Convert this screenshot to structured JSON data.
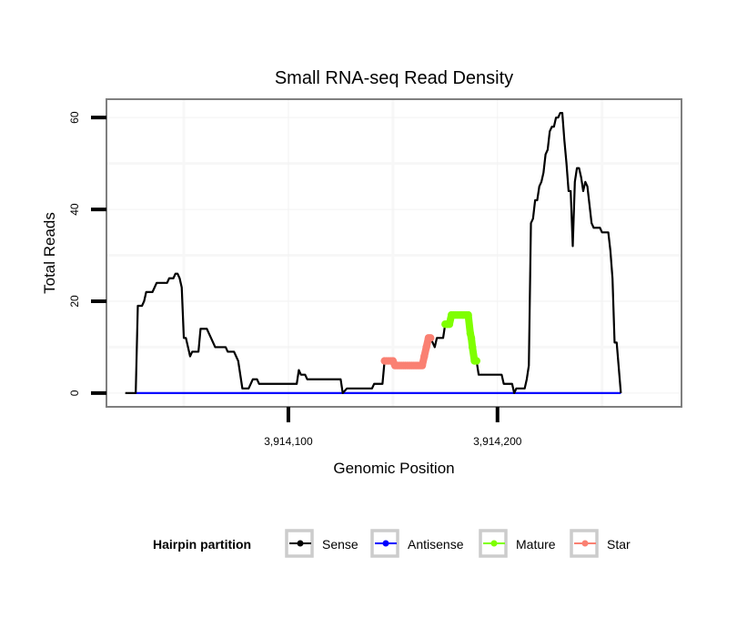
{
  "chart_data": {
    "type": "line",
    "title": "Small RNA-seq Read Density",
    "xlabel": "Genomic Position",
    "ylabel": "Total Reads",
    "xlim": [
      3914013,
      3914288
    ],
    "ylim": [
      -3,
      64
    ],
    "x_ticks": [
      {
        "value": 3914100,
        "label": "3,914,100"
      },
      {
        "value": 3914200,
        "label": "3,914,200"
      }
    ],
    "y_ticks": [
      {
        "value": 0,
        "label": "0"
      },
      {
        "value": 20,
        "label": "20"
      },
      {
        "value": 40,
        "label": "40"
      },
      {
        "value": 60,
        "label": "60"
      }
    ],
    "y_minor_gridlines": [
      10,
      30,
      50
    ],
    "x_minor_gridlines": [
      3914050,
      3914150,
      3914250
    ],
    "grid": true,
    "legend": {
      "title": "Hairpin partition",
      "placement": "bottom",
      "entries": [
        {
          "name": "Sense",
          "color": "#000000"
        },
        {
          "name": "Antisense",
          "color": "#0000ff"
        },
        {
          "name": "Mature",
          "color": "#7fff00"
        },
        {
          "name": "Star",
          "color": "#fa8072"
        }
      ]
    },
    "series": [
      {
        "name": "Sense",
        "color": "#000000",
        "markers": false,
        "points": [
          [
            3914022,
            0
          ],
          [
            3914027,
            0
          ],
          [
            3914028,
            19
          ],
          [
            3914030,
            19
          ],
          [
            3914031,
            20
          ],
          [
            3914032,
            22
          ],
          [
            3914035,
            22
          ],
          [
            3914037,
            24
          ],
          [
            3914042,
            24
          ],
          [
            3914043,
            25
          ],
          [
            3914045,
            25
          ],
          [
            3914046,
            26
          ],
          [
            3914047,
            26
          ],
          [
            3914048,
            25
          ],
          [
            3914049,
            23
          ],
          [
            3914050,
            12
          ],
          [
            3914051,
            12
          ],
          [
            3914052,
            10
          ],
          [
            3914053,
            8
          ],
          [
            3914054,
            9
          ],
          [
            3914057,
            9
          ],
          [
            3914058,
            14
          ],
          [
            3914061,
            14
          ],
          [
            3914062,
            13
          ],
          [
            3914063,
            12
          ],
          [
            3914065,
            10
          ],
          [
            3914070,
            10
          ],
          [
            3914071,
            9
          ],
          [
            3914074,
            9
          ],
          [
            3914075,
            8
          ],
          [
            3914076,
            7
          ],
          [
            3914078,
            1
          ],
          [
            3914081,
            1
          ],
          [
            3914083,
            3
          ],
          [
            3914085,
            3
          ],
          [
            3914086,
            2
          ],
          [
            3914104,
            2
          ],
          [
            3914105,
            5
          ],
          [
            3914106,
            4
          ],
          [
            3914108,
            4
          ],
          [
            3914109,
            3
          ],
          [
            3914125,
            3
          ],
          [
            3914126,
            0
          ],
          [
            3914128,
            1
          ],
          [
            3914140,
            1
          ],
          [
            3914141,
            2
          ],
          [
            3914145,
            2
          ],
          [
            3914146,
            7
          ],
          [
            3914150,
            7
          ],
          [
            3914151,
            6
          ],
          [
            3914164,
            6
          ],
          [
            3914165,
            8
          ],
          [
            3914166,
            10
          ],
          [
            3914167,
            12
          ],
          [
            3914168,
            12
          ],
          [
            3914169,
            11
          ],
          [
            3914170,
            10
          ],
          [
            3914171,
            12
          ],
          [
            3914174,
            12
          ],
          [
            3914175,
            15
          ],
          [
            3914177,
            15
          ],
          [
            3914178,
            17
          ],
          [
            3914186,
            17
          ],
          [
            3914187,
            13
          ],
          [
            3914188,
            10
          ],
          [
            3914189,
            7
          ],
          [
            3914190,
            7
          ],
          [
            3914191,
            4
          ],
          [
            3914202,
            4
          ],
          [
            3914203,
            2
          ],
          [
            3914207,
            2
          ],
          [
            3914208,
            0
          ],
          [
            3914209,
            1
          ],
          [
            3914213,
            1
          ],
          [
            3914214,
            3
          ],
          [
            3914215,
            6
          ],
          [
            3914216,
            37
          ],
          [
            3914217,
            38
          ],
          [
            3914218,
            42
          ],
          [
            3914219,
            42
          ],
          [
            3914220,
            45
          ],
          [
            3914221,
            46
          ],
          [
            3914222,
            48
          ],
          [
            3914223,
            52
          ],
          [
            3914224,
            53
          ],
          [
            3914225,
            57
          ],
          [
            3914226,
            58
          ],
          [
            3914227,
            58
          ],
          [
            3914228,
            60
          ],
          [
            3914229,
            60
          ],
          [
            3914230,
            61
          ],
          [
            3914231,
            61
          ],
          [
            3914232,
            55
          ],
          [
            3914233,
            50
          ],
          [
            3914234,
            44
          ],
          [
            3914235,
            44
          ],
          [
            3914236,
            32
          ],
          [
            3914237,
            46
          ],
          [
            3914238,
            49
          ],
          [
            3914239,
            49
          ],
          [
            3914240,
            47
          ],
          [
            3914241,
            44
          ],
          [
            3914242,
            46
          ],
          [
            3914243,
            45
          ],
          [
            3914244,
            41
          ],
          [
            3914245,
            37
          ],
          [
            3914246,
            36
          ],
          [
            3914249,
            36
          ],
          [
            3914250,
            35
          ],
          [
            3914253,
            35
          ],
          [
            3914254,
            31
          ],
          [
            3914255,
            25
          ],
          [
            3914256,
            11
          ],
          [
            3914257,
            11
          ],
          [
            3914259,
            0
          ]
        ]
      },
      {
        "name": "Antisense",
        "color": "#0000ff",
        "markers": false,
        "points": [
          [
            3914027,
            0
          ],
          [
            3914259,
            0
          ]
        ]
      },
      {
        "name": "Star",
        "color": "#fa8072",
        "markers": true,
        "points": [
          [
            3914146,
            7
          ],
          [
            3914147,
            7
          ],
          [
            3914148,
            7
          ],
          [
            3914149,
            7
          ],
          [
            3914150,
            7
          ],
          [
            3914151,
            6
          ],
          [
            3914152,
            6
          ],
          [
            3914153,
            6
          ],
          [
            3914154,
            6
          ],
          [
            3914155,
            6
          ],
          [
            3914156,
            6
          ],
          [
            3914157,
            6
          ],
          [
            3914158,
            6
          ],
          [
            3914159,
            6
          ],
          [
            3914160,
            6
          ],
          [
            3914161,
            6
          ],
          [
            3914162,
            6
          ],
          [
            3914163,
            6
          ],
          [
            3914164,
            6
          ],
          [
            3914165,
            8
          ],
          [
            3914166,
            10
          ],
          [
            3914167,
            12
          ],
          [
            3914168,
            12
          ]
        ]
      },
      {
        "name": "Mature",
        "color": "#7fff00",
        "markers": true,
        "points": [
          [
            3914175,
            15
          ],
          [
            3914176,
            15
          ],
          [
            3914177,
            15
          ],
          [
            3914178,
            17
          ],
          [
            3914179,
            17
          ],
          [
            3914180,
            17
          ],
          [
            3914181,
            17
          ],
          [
            3914182,
            17
          ],
          [
            3914183,
            17
          ],
          [
            3914184,
            17
          ],
          [
            3914185,
            17
          ],
          [
            3914186,
            17
          ],
          [
            3914187,
            13
          ],
          [
            3914187.5,
            12
          ],
          [
            3914188,
            10
          ],
          [
            3914189,
            7
          ],
          [
            3914190,
            7
          ]
        ]
      }
    ]
  }
}
